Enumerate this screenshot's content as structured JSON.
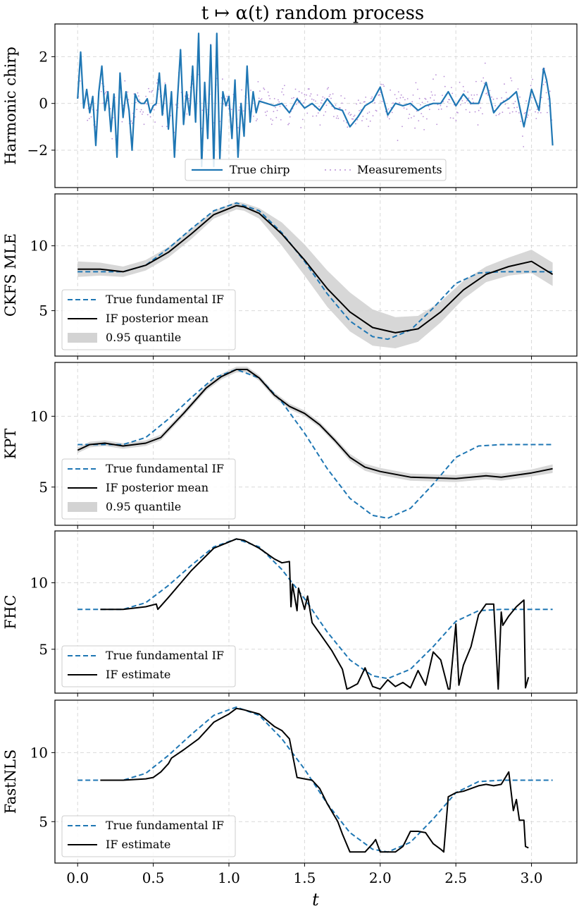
{
  "chart_data": {
    "type": "line",
    "title": "t ↦ α(t) random process",
    "xlabel": "t",
    "xlim": [
      -0.15,
      3.3
    ],
    "xticks": [
      0.0,
      0.5,
      1.0,
      1.5,
      2.0,
      2.5,
      3.0
    ],
    "xtick_labels": [
      "0.0",
      "0.5",
      "1.0",
      "1.5",
      "2.0",
      "2.5",
      "3.0"
    ],
    "colors": {
      "true_line": "#1f77b4",
      "estimate": "#000000",
      "measurements": "#b88fd6",
      "band": "#d3d3d3"
    },
    "panels": [
      {
        "ylabel": "Harmonic chirp",
        "ylim": [
          -3.6,
          3.4
        ],
        "yticks": [
          2,
          0,
          -2
        ],
        "ytick_labels": [
          "2",
          "0",
          "−2"
        ],
        "legend": {
          "position": "lower-center",
          "entries": [
            "True chirp",
            "Measurements"
          ]
        },
        "series": [
          {
            "name": "True chirp",
            "style": "solid",
            "x": [
              0.0,
              0.02,
              0.04,
              0.06,
              0.08,
              0.1,
              0.12,
              0.14,
              0.16,
              0.18,
              0.2,
              0.22,
              0.24,
              0.26,
              0.28,
              0.3,
              0.32,
              0.34,
              0.36,
              0.38,
              0.4,
              0.42,
              0.44,
              0.46,
              0.48,
              0.5,
              0.52,
              0.54,
              0.56,
              0.58,
              0.6,
              0.62,
              0.64,
              0.66,
              0.68,
              0.7,
              0.72,
              0.74,
              0.76,
              0.78,
              0.8,
              0.82,
              0.84,
              0.86,
              0.88,
              0.9,
              0.92,
              0.94,
              0.96,
              0.98,
              1.0,
              1.02,
              1.04,
              1.06,
              1.08,
              1.1,
              1.12,
              1.14,
              1.16,
              1.18,
              1.2,
              1.25,
              1.3,
              1.35,
              1.4,
              1.45,
              1.5,
              1.55,
              1.6,
              1.65,
              1.7,
              1.75,
              1.8,
              1.85,
              1.9,
              1.95,
              2.0,
              2.05,
              2.1,
              2.15,
              2.2,
              2.25,
              2.3,
              2.35,
              2.4,
              2.45,
              2.5,
              2.55,
              2.6,
              2.65,
              2.7,
              2.75,
              2.8,
              2.85,
              2.9,
              2.95,
              3.0,
              3.05,
              3.08,
              3.1,
              3.12,
              3.14
            ],
            "y": [
              0.2,
              2.2,
              -0.2,
              0.6,
              -0.4,
              0.3,
              -1.8,
              0.5,
              1.6,
              -0.3,
              0.5,
              -1.2,
              0.4,
              -2.3,
              1.3,
              -0.6,
              0.5,
              -0.3,
              -2.0,
              0.4,
              0.1,
              0.0,
              0.0,
              0.2,
              -0.4,
              -0.1,
              0.0,
              1.3,
              -0.5,
              0.8,
              -1.1,
              0.5,
              -2.3,
              0.2,
              2.3,
              -0.9,
              0.5,
              -0.5,
              1.6,
              -0.8,
              3.0,
              -2.7,
              0.9,
              -1.5,
              2.5,
              -2.7,
              3.0,
              -2.4,
              0.5,
              -0.1,
              0.3,
              -1.5,
              1.0,
              -2.3,
              0.0,
              -1.4,
              1.6,
              -0.8,
              0.5,
              -0.4,
              0.1,
              0.0,
              -0.1,
              0.0,
              -0.4,
              0.2,
              -0.2,
              0.0,
              -0.3,
              0.2,
              -0.2,
              -0.3,
              -1.0,
              -0.6,
              -0.1,
              0.1,
              0.7,
              -0.5,
              0.0,
              -0.1,
              0.0,
              -0.3,
              -0.1,
              0.0,
              0.0,
              0.5,
              -0.1,
              0.4,
              0.0,
              0.0,
              0.9,
              -0.4,
              0.0,
              0.2,
              0.5,
              -1.0,
              0.6,
              -0.3,
              1.5,
              1.0,
              0.2,
              -1.8
            ]
          },
          {
            "name": "Measurements",
            "style": "points",
            "noise_sd": 0.45
          }
        ]
      },
      {
        "ylabel": "CKFS MLE",
        "ylim": [
          1.5,
          14.0
        ],
        "yticks": [
          10,
          5
        ],
        "ytick_labels": [
          "10",
          "5"
        ],
        "legend": {
          "position": "lower-left",
          "entries": [
            "True fundamental IF",
            "IF posterior mean",
            "0.95 quantile"
          ]
        },
        "series": [
          {
            "name": "True fundamental IF",
            "style": "dashed",
            "x": [
              0.0,
              0.15,
              0.3,
              0.45,
              0.6,
              0.75,
              0.9,
              1.05,
              1.2,
              1.35,
              1.5,
              1.65,
              1.8,
              1.95,
              2.05,
              2.2,
              2.35,
              2.5,
              2.65,
              2.8,
              2.95,
              3.14
            ],
            "y": [
              8.0,
              8.0,
              8.0,
              8.5,
              9.8,
              11.3,
              12.7,
              13.3,
              12.7,
              11.0,
              8.8,
              6.3,
              4.2,
              3.0,
              2.8,
              3.5,
              5.2,
              7.1,
              7.9,
              8.0,
              8.0,
              8.0
            ]
          },
          {
            "name": "IF posterior mean",
            "style": "solid",
            "x": [
              0.0,
              0.15,
              0.3,
              0.45,
              0.6,
              0.75,
              0.9,
              1.05,
              1.1,
              1.2,
              1.35,
              1.5,
              1.65,
              1.8,
              1.95,
              2.1,
              2.25,
              2.4,
              2.55,
              2.7,
              2.85,
              3.0,
              3.14
            ],
            "y": [
              8.2,
              8.2,
              8.0,
              8.5,
              9.5,
              10.9,
              12.4,
              13.1,
              13.0,
              12.5,
              10.9,
              8.9,
              6.7,
              4.9,
              3.7,
              3.3,
              3.6,
              4.9,
              6.6,
              7.8,
              8.4,
              8.8,
              7.8
            ]
          },
          {
            "name": "0.95 quantile",
            "style": "band",
            "halfwidth": [
              0.6,
              0.5,
              0.4,
              0.4,
              0.4,
              0.4,
              0.3,
              0.3,
              0.3,
              0.4,
              0.9,
              1.2,
              1.4,
              1.5,
              1.4,
              1.2,
              1.0,
              0.8,
              0.7,
              0.6,
              0.7,
              0.9,
              0.9
            ]
          }
        ]
      },
      {
        "ylabel": "KPT",
        "ylim": [
          2.3,
          13.8
        ],
        "yticks": [
          10,
          5
        ],
        "ytick_labels": [
          "10",
          "5"
        ],
        "legend": {
          "position": "lower-left",
          "entries": [
            "True fundamental IF",
            "IF posterior mean",
            "0.95 quantile"
          ]
        },
        "series": [
          {
            "name": "True fundamental IF",
            "style": "dashed",
            "x": [
              0.0,
              0.15,
              0.3,
              0.45,
              0.6,
              0.75,
              0.9,
              1.05,
              1.2,
              1.35,
              1.5,
              1.65,
              1.8,
              1.95,
              2.05,
              2.2,
              2.35,
              2.5,
              2.65,
              2.8,
              2.95,
              3.14
            ],
            "y": [
              8.0,
              8.0,
              8.0,
              8.5,
              9.8,
              11.3,
              12.7,
              13.3,
              12.7,
              11.0,
              8.8,
              6.3,
              4.2,
              3.0,
              2.8,
              3.5,
              5.2,
              7.1,
              7.9,
              8.0,
              8.0,
              8.0
            ]
          },
          {
            "name": "IF posterior mean",
            "style": "solid",
            "x": [
              0.0,
              0.08,
              0.18,
              0.3,
              0.45,
              0.55,
              0.7,
              0.85,
              0.95,
              1.05,
              1.12,
              1.2,
              1.3,
              1.4,
              1.5,
              1.6,
              1.7,
              1.8,
              1.9,
              2.0,
              2.2,
              2.5,
              2.7,
              2.8,
              3.0,
              3.14
            ],
            "y": [
              7.6,
              8.0,
              8.1,
              7.9,
              8.1,
              8.5,
              10.2,
              12.0,
              12.8,
              13.3,
              13.3,
              12.7,
              11.5,
              10.7,
              10.2,
              9.4,
              8.3,
              7.1,
              6.4,
              6.1,
              5.7,
              5.6,
              5.8,
              5.7,
              6.0,
              6.3
            ]
          },
          {
            "name": "0.95 quantile",
            "style": "band",
            "halfwidth": [
              0.2,
              0.2,
              0.2,
              0.2,
              0.2,
              0.2,
              0.2,
              0.2,
              0.2,
              0.2,
              0.2,
              0.2,
              0.2,
              0.2,
              0.2,
              0.2,
              0.2,
              0.25,
              0.25,
              0.25,
              0.25,
              0.25,
              0.25,
              0.25,
              0.25,
              0.3
            ]
          }
        ]
      },
      {
        "ylabel": "FHC",
        "ylim": [
          1.7,
          13.9
        ],
        "yticks": [
          10,
          5
        ],
        "ytick_labels": [
          "10",
          "5"
        ],
        "legend": {
          "position": "lower-left",
          "entries": [
            "True fundamental IF",
            "IF estimate"
          ]
        },
        "series": [
          {
            "name": "True fundamental IF",
            "style": "dashed",
            "x": [
              0.0,
              0.15,
              0.3,
              0.45,
              0.6,
              0.75,
              0.9,
              1.05,
              1.2,
              1.35,
              1.5,
              1.65,
              1.8,
              1.95,
              2.05,
              2.2,
              2.35,
              2.5,
              2.65,
              2.8,
              2.95,
              3.14
            ],
            "y": [
              8.0,
              8.0,
              8.0,
              8.5,
              9.8,
              11.3,
              12.7,
              13.3,
              12.7,
              11.0,
              8.8,
              6.3,
              4.2,
              3.0,
              2.8,
              3.5,
              5.2,
              7.1,
              7.9,
              8.0,
              8.0,
              8.0
            ]
          },
          {
            "name": "IF estimate",
            "style": "solid",
            "x": [
              0.15,
              0.3,
              0.45,
              0.52,
              0.53,
              0.6,
              0.75,
              0.9,
              1.05,
              1.1,
              1.2,
              1.3,
              1.35,
              1.4,
              1.41,
              1.42,
              1.45,
              1.46,
              1.5,
              1.52,
              1.55,
              1.6,
              1.68,
              1.75,
              1.78,
              1.8,
              1.85,
              1.9,
              1.95,
              2.0,
              2.05,
              2.1,
              2.15,
              2.2,
              2.25,
              2.3,
              2.35,
              2.4,
              2.45,
              2.46,
              2.5,
              2.52,
              2.55,
              2.6,
              2.65,
              2.7,
              2.75,
              2.78,
              2.8,
              2.81,
              2.85,
              2.9,
              2.95,
              2.96,
              2.98
            ],
            "y": [
              8.0,
              8.0,
              8.2,
              8.4,
              8.0,
              8.9,
              10.9,
              12.6,
              13.3,
              13.2,
              12.6,
              11.8,
              11.5,
              11.6,
              8.2,
              9.9,
              7.9,
              9.6,
              8.0,
              9.0,
              7.0,
              6.2,
              4.9,
              3.5,
              2.0,
              2.1,
              2.4,
              3.6,
              2.2,
              2.0,
              2.7,
              2.2,
              2.5,
              2.1,
              3.4,
              2.3,
              4.8,
              4.2,
              2.0,
              2.0,
              6.9,
              2.3,
              3.8,
              5.2,
              7.6,
              8.4,
              8.4,
              2.0,
              7.8,
              6.8,
              7.5,
              8.2,
              8.7,
              2.1,
              2.9
            ]
          }
        ]
      },
      {
        "ylabel": "FastNLS",
        "ylim": [
          2.0,
          13.8
        ],
        "yticks": [
          10,
          5
        ],
        "ytick_labels": [
          "10",
          "5"
        ],
        "legend": {
          "position": "lower-left",
          "entries": [
            "True fundamental IF",
            "IF estimate"
          ]
        },
        "series": [
          {
            "name": "True fundamental IF",
            "style": "dashed",
            "x": [
              0.0,
              0.15,
              0.3,
              0.45,
              0.6,
              0.75,
              0.9,
              1.05,
              1.2,
              1.35,
              1.5,
              1.65,
              1.8,
              1.95,
              2.05,
              2.2,
              2.35,
              2.5,
              2.65,
              2.8,
              2.95,
              3.14
            ],
            "y": [
              8.0,
              8.0,
              8.0,
              8.5,
              9.8,
              11.3,
              12.7,
              13.3,
              12.7,
              11.0,
              8.8,
              6.3,
              4.2,
              3.0,
              2.8,
              3.5,
              5.2,
              7.1,
              7.9,
              8.0,
              8.0,
              8.0
            ]
          },
          {
            "name": "IF estimate",
            "style": "solid",
            "x": [
              0.15,
              0.3,
              0.45,
              0.5,
              0.55,
              0.6,
              0.62,
              0.7,
              0.8,
              0.9,
              1.0,
              1.05,
              1.1,
              1.2,
              1.3,
              1.35,
              1.4,
              1.45,
              1.5,
              1.55,
              1.6,
              1.65,
              1.72,
              1.75,
              1.8,
              1.85,
              1.9,
              1.95,
              1.97,
              2.0,
              2.05,
              2.1,
              2.15,
              2.2,
              2.25,
              2.3,
              2.35,
              2.4,
              2.42,
              2.45,
              2.5,
              2.55,
              2.6,
              2.65,
              2.7,
              2.75,
              2.8,
              2.85,
              2.88,
              2.9,
              2.92,
              2.95,
              2.96,
              2.98
            ],
            "y": [
              8.0,
              8.0,
              8.1,
              8.2,
              8.6,
              9.2,
              9.6,
              10.2,
              11.0,
              12.2,
              12.8,
              13.2,
              13.1,
              12.8,
              11.9,
              11.6,
              11.0,
              8.2,
              8.1,
              8.0,
              7.4,
              6.3,
              5.0,
              4.1,
              2.8,
              2.8,
              2.8,
              3.4,
              3.7,
              2.8,
              2.8,
              2.8,
              3.2,
              4.3,
              4.3,
              4.2,
              3.4,
              3.0,
              2.8,
              6.8,
              7.1,
              7.2,
              7.4,
              7.6,
              7.7,
              7.6,
              7.7,
              8.6,
              5.8,
              6.6,
              5.1,
              5.1,
              3.2,
              3.1
            ]
          }
        ]
      }
    ],
    "legend_labels": {
      "true_chirp": "True chirp",
      "measurements": "Measurements",
      "true_if": "True fundamental IF",
      "posterior_mean": "IF posterior mean",
      "quantile": "0.95 quantile",
      "estimate": "IF estimate"
    }
  }
}
